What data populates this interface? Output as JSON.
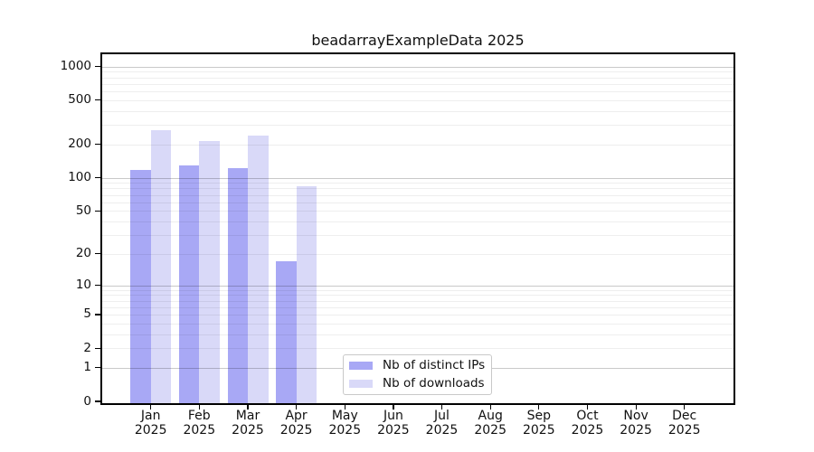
{
  "title": "beadarrayExampleData 2025",
  "chart_data": {
    "type": "bar",
    "title": "beadarrayExampleData 2025",
    "categories": [
      "Jan",
      "Feb",
      "Mar",
      "Apr",
      "May",
      "Jun",
      "Jul",
      "Aug",
      "Sep",
      "Oct",
      "Nov",
      "Dec"
    ],
    "x_year": "2025",
    "series": [
      {
        "name": "Nb of distinct IPs",
        "color": "#a8a8f5",
        "values": [
          118,
          129,
          122,
          17,
          0,
          0,
          0,
          0,
          0,
          0,
          0,
          0
        ]
      },
      {
        "name": "Nb of downloads",
        "color": "#d9d9f8",
        "values": [
          270,
          215,
          238,
          84,
          0,
          0,
          0,
          0,
          0,
          0,
          0,
          0
        ]
      }
    ],
    "xlabel": "",
    "ylabel": "",
    "y_scale": "log10(value+1)",
    "y_ticks": [
      0,
      1,
      2,
      5,
      10,
      20,
      50,
      100,
      200,
      500,
      1000
    ],
    "ylim": [
      0,
      1290
    ],
    "grid": true,
    "grid_major_at": [
      1,
      10,
      100,
      1000
    ],
    "legend_position": "bottom-center-inside",
    "colors": {
      "frame": "#000000",
      "grid_major": "#c9c9c9",
      "grid_minor": "#efefef",
      "background": "#ffffff"
    }
  }
}
